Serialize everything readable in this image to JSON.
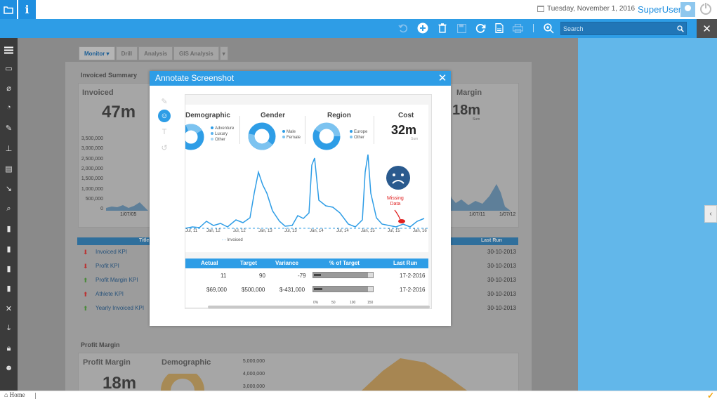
{
  "topbar": {
    "date": "Tuesday, November 1, 2016",
    "user": "SuperUser",
    "info_label": "i"
  },
  "toolbar": {
    "search_placeholder": "Search"
  },
  "tabs": [
    {
      "label": "Monitor ▾"
    },
    {
      "label": "Drill"
    },
    {
      "label": "Analysis"
    },
    {
      "label": "GIS Analysis"
    }
  ],
  "dashboard": {
    "invoiced_summary_title": "Invoiced Summary",
    "invoiced_label": "Invoiced",
    "invoiced_value": "47m",
    "margin_label": "Margin",
    "margin_value": "18m",
    "sum_label": "Sum",
    "y_axis": [
      "3,500,000",
      "3,000,000",
      "2,500,000",
      "2,000,000",
      "1,500,000",
      "1,000,000",
      "500,000",
      "0"
    ],
    "x_label_left": "1/07/05",
    "x_labels_right": [
      "1/07/11",
      "1/07/12"
    ],
    "kpi_header_title": "Title",
    "kpi_header_lastrun": "Last Run",
    "kpis": [
      {
        "name": "Invoiced KPI",
        "trend": "down",
        "date": "30-10-2013"
      },
      {
        "name": "Profit KPI",
        "trend": "down",
        "date": "30-10-2013"
      },
      {
        "name": "Profit Margin KPI",
        "trend": "up",
        "date": "30-10-2013"
      },
      {
        "name": "Athlete KPI",
        "trend": "down",
        "date": "30-10-2013"
      },
      {
        "name": "Yearly Invoiced KPI",
        "trend": "up",
        "date": "30-10-2013"
      }
    ],
    "profit_margin_title": "Profit Margin",
    "profit_margin_label": "Profit Margin",
    "profit_margin_value": "18m",
    "demographic_label": "Demographic",
    "pm_axis": [
      "5,000,000",
      "4,000,000",
      "3,000,000"
    ]
  },
  "modal": {
    "title": "Annotate Screenshot",
    "shot": {
      "demographic": "Demographic",
      "demographic_legend": [
        "Adventure",
        "Luxury",
        "Other"
      ],
      "gender": "Gender",
      "gender_legend": [
        "Male",
        "Female"
      ],
      "region": "Region",
      "region_legend": [
        "Europe",
        "Other"
      ],
      "cost": "Cost",
      "cost_value": "32m",
      "cost_sub": "Sum",
      "x_ticks": [
        "Jul, 11",
        "Jan, 12",
        "Jul, 12",
        "Jan, 13",
        "Jul, 13",
        "Jan, 14",
        "Jul, 14",
        "Jan, 15",
        "Jul, 15",
        "Jan, 16"
      ],
      "series_legend": "Invoiced",
      "annotation_text_1": "Missing",
      "annotation_text_2": "Data",
      "table_headers": [
        "Actual",
        "Target",
        "Variance",
        "% of Target",
        "Last Run"
      ],
      "rows": [
        {
          "actual": "11",
          "target": "90",
          "variance": "-79",
          "last_run": "17-2-2016",
          "pct": 0.12
        },
        {
          "actual": "$69,000",
          "target": "$500,000",
          "variance": "$-431,000",
          "last_run": "17-2-2016",
          "pct": 0.14
        }
      ],
      "scale": [
        "0%",
        "50",
        "100",
        "150"
      ]
    }
  }
}
